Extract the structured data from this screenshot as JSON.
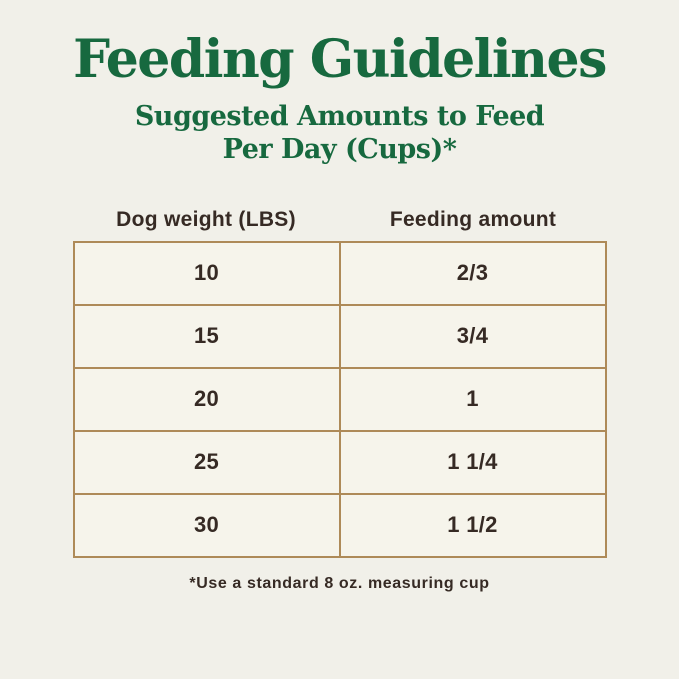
{
  "page": {
    "title": "Feeding Guidelines",
    "subtitle_line1": "Suggested Amounts to Feed",
    "subtitle_line2": "Per Day (Cups)*",
    "footnote": "*Use a standard 8 oz. measuring cup"
  },
  "table": {
    "columns": [
      "Dog weight (LBS)",
      "Feeding amount"
    ],
    "rows": [
      [
        "10",
        "2/3"
      ],
      [
        "15",
        "3/4"
      ],
      [
        "20",
        "1"
      ],
      [
        "25",
        "1 1/4"
      ],
      [
        "30",
        "1 1/2"
      ]
    ]
  },
  "chart_data": {
    "type": "table",
    "title": "Feeding Guidelines",
    "subtitle": "Suggested Amounts to Feed Per Day (Cups)*",
    "columns": [
      "Dog weight (LBS)",
      "Feeding amount"
    ],
    "rows": [
      [
        10,
        "2/3"
      ],
      [
        15,
        "3/4"
      ],
      [
        20,
        "1"
      ],
      [
        25,
        "1 1/4"
      ],
      [
        30,
        "1 1/2"
      ]
    ],
    "footnote": "*Use a standard 8 oz. measuring cup",
    "layout_hints": {
      "columns_equal_width": true,
      "grid": "full-borders",
      "header_outside_table": true
    }
  },
  "colors": {
    "background": "#F1F0E9",
    "cell_background": "#F6F4EB",
    "heading_green": "#17693F",
    "table_border": "#AE8A58",
    "text_dark": "#362A24"
  }
}
